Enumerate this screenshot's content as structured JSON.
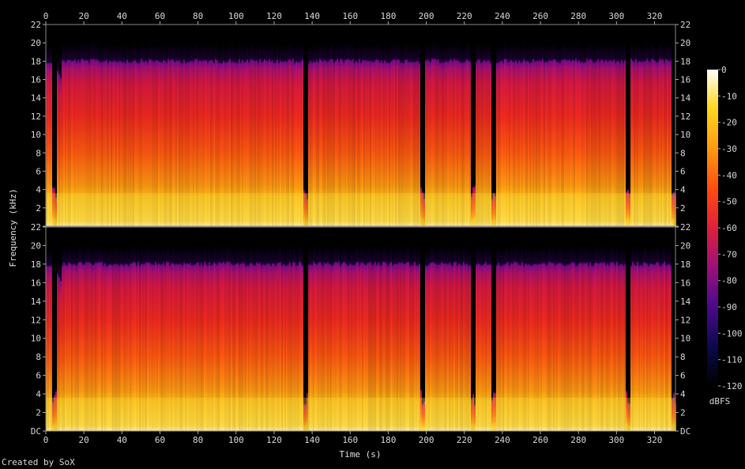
{
  "chart_data": {
    "type": "heatmap",
    "title": "",
    "xlabel": "Time (s)",
    "ylabel": "Frequency (kHz)",
    "x_ticks": [
      "0",
      "20",
      "40",
      "60",
      "80",
      "100",
      "120",
      "140",
      "160",
      "180",
      "200",
      "220",
      "240",
      "260",
      "280",
      "300",
      "320"
    ],
    "y_ticks_per_channel": [
      "DC",
      "2",
      "4",
      "6",
      "8",
      "10",
      "12",
      "14",
      "16",
      "18",
      "20",
      "22"
    ],
    "x_range": [
      0,
      331
    ],
    "y_range_khz": [
      0,
      22
    ],
    "channels": 2,
    "colorbar": {
      "label": "dBFS",
      "ticks": [
        "0",
        "-10",
        "-20",
        "-30",
        "-40",
        "-50",
        "-60",
        "-70",
        "-80",
        "-90",
        "-100",
        "-110",
        "-120"
      ],
      "range": [
        -120,
        0
      ]
    },
    "quiet_gaps_s": [
      4,
      136,
      198,
      224,
      235,
      306,
      330
    ],
    "lowpass_cutoff_khz": 20
  },
  "footer": {
    "credit": "Created by SoX"
  }
}
